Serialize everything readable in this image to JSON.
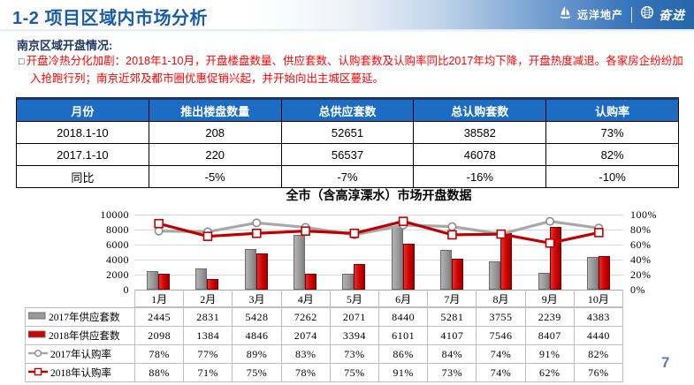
{
  "header": {
    "title": "1-2 项目区域内市场分析",
    "logo_sino_ocean": "远洋地产",
    "logo_fenjin": "奋进"
  },
  "section": {
    "heading": "南京区域开盘情况:"
  },
  "bullet": {
    "marker": "□",
    "text": "开盘冷热分化加剧：2018年1-10月，开盘楼盘数量、供应套数、认购套数及认购率同比2017年均下降，开盘热度减退。各家房企纷纷加入抢跑行列；南京近郊及都市圈优惠促销兴起，并开始向出主城区蔓延。"
  },
  "summary_table": {
    "columns": [
      "月份",
      "推出楼盘数量",
      "总供应套数",
      "总认购套数",
      "认购率"
    ],
    "rows": [
      [
        "2018.1-10",
        "208",
        "52651",
        "38582",
        "73%"
      ],
      [
        "2017.1-10",
        "220",
        "56537",
        "46078",
        "82%"
      ],
      [
        "同比",
        "-5%",
        "-7%",
        "-16%",
        "-10%"
      ]
    ]
  },
  "chart_data": {
    "type": "bar",
    "subtype": "combo-bar-line",
    "title": "全市（含高淳溧水）市场开盘数据",
    "categories": [
      "1月",
      "2月",
      "3月",
      "4月",
      "5月",
      "6月",
      "7月",
      "8月",
      "9月",
      "10月"
    ],
    "series": [
      {
        "name": "2017年供应套数",
        "type": "bar",
        "axis": "left",
        "color": "#9a9a9a",
        "values": [
          2445,
          2831,
          5428,
          7262,
          2071,
          8440,
          5281,
          3755,
          2239,
          4383
        ]
      },
      {
        "name": "2018年供应套数",
        "type": "bar",
        "axis": "left",
        "color": "#cf0000",
        "values": [
          2098,
          1384,
          4846,
          2074,
          3394,
          6101,
          4107,
          7546,
          8407,
          4440
        ]
      },
      {
        "name": "2017年认购率",
        "type": "line",
        "axis": "right",
        "color": "#a8a8a8",
        "marker": "circle",
        "values": [
          78,
          77,
          89,
          83,
          73,
          86,
          84,
          74,
          91,
          82
        ]
      },
      {
        "name": "2018年认购率",
        "type": "line",
        "axis": "right",
        "color": "#c00000",
        "marker": "square",
        "values": [
          88,
          71,
          75,
          78,
          75,
          91,
          73,
          74,
          62,
          76
        ]
      }
    ],
    "left_axis": {
      "min": 0,
      "max": 10000,
      "tick_labels": [
        "0",
        "2000",
        "4000",
        "6000",
        "8000",
        "10000"
      ]
    },
    "right_axis": {
      "min": 0,
      "max": 100,
      "tick_labels": [
        "0%",
        "20%",
        "40%",
        "60%",
        "80%",
        "100%"
      ]
    },
    "grid": true,
    "legend_position": "data-table-left",
    "data_table_shown": true
  },
  "page_number": "7"
}
